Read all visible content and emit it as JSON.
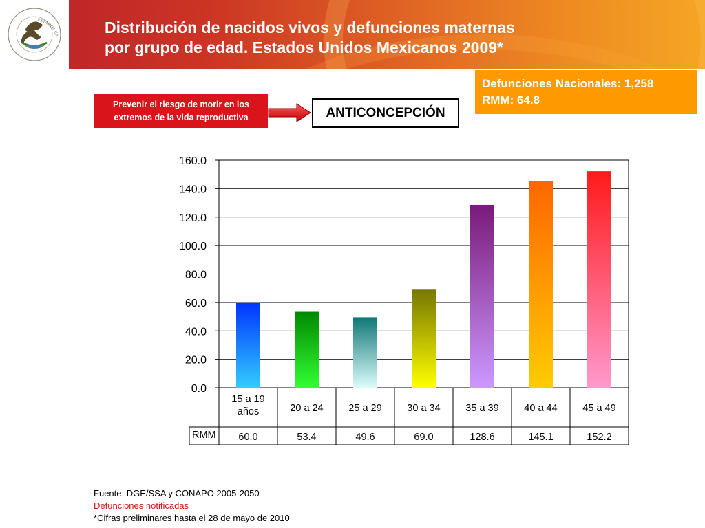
{
  "header": {
    "title_line1": "Distribución de nacidos vivos y defunciones maternas",
    "title_line2": "por grupo de edad. Estados Unidos Mexicanos 2009*",
    "logo_text": "ESTADOS UNIDOS MEXICANOS"
  },
  "infobox": {
    "line1": "Defunciones Nacionales: 1,258",
    "line2": "RMM: 64.8",
    "color": "#ff9900"
  },
  "redbox": {
    "line1": "Prevenir el riesgo de morir en los",
    "line2": "extremos de la vida reproductiva",
    "color": "#d9141b"
  },
  "anti_box": {
    "label": "ANTICONCEPCIÓN"
  },
  "chart_data": {
    "type": "bar",
    "categories": [
      "15 a 19 años",
      "20 a 24",
      "25 a 29",
      "30 a 34",
      "35 a 39",
      "40 a 44",
      "45 a 49"
    ],
    "series": [
      {
        "name": "RMM",
        "values": [
          60.0,
          53.4,
          49.6,
          69.0,
          128.6,
          145.1,
          152.2
        ]
      }
    ],
    "value_labels": [
      "60.0",
      "53.4",
      "49.6",
      "69.0",
      "128.6",
      "145.1",
      "152.2"
    ],
    "ylim": [
      0,
      160
    ],
    "yticks": [
      0,
      20,
      40,
      60,
      80,
      100,
      120,
      140,
      160
    ],
    "ytick_labels": [
      "0.0",
      "20.0",
      "40.0",
      "60.0",
      "80.0",
      "100.0",
      "120.0",
      "140.0",
      "160.0"
    ],
    "grid": true,
    "data_table": true,
    "bar_colors": [
      [
        "#0033ff",
        "#33ccff"
      ],
      [
        "#008800",
        "#33ff33"
      ],
      [
        "#117777",
        "#ddfcfc"
      ],
      [
        "#777700",
        "#ffff00"
      ],
      [
        "#7a1a7a",
        "#cc99ff"
      ],
      [
        "#ff6600",
        "#ffcc00"
      ],
      [
        "#ff1a1a",
        "#ff99cc"
      ]
    ]
  },
  "footer": {
    "source": "Fuente: DGE/SSA y CONAPO 2005-2050",
    "note_red": "Defunciones notificadas",
    "note": "*Cifras preliminares hasta el 28 de mayo de 2010"
  }
}
